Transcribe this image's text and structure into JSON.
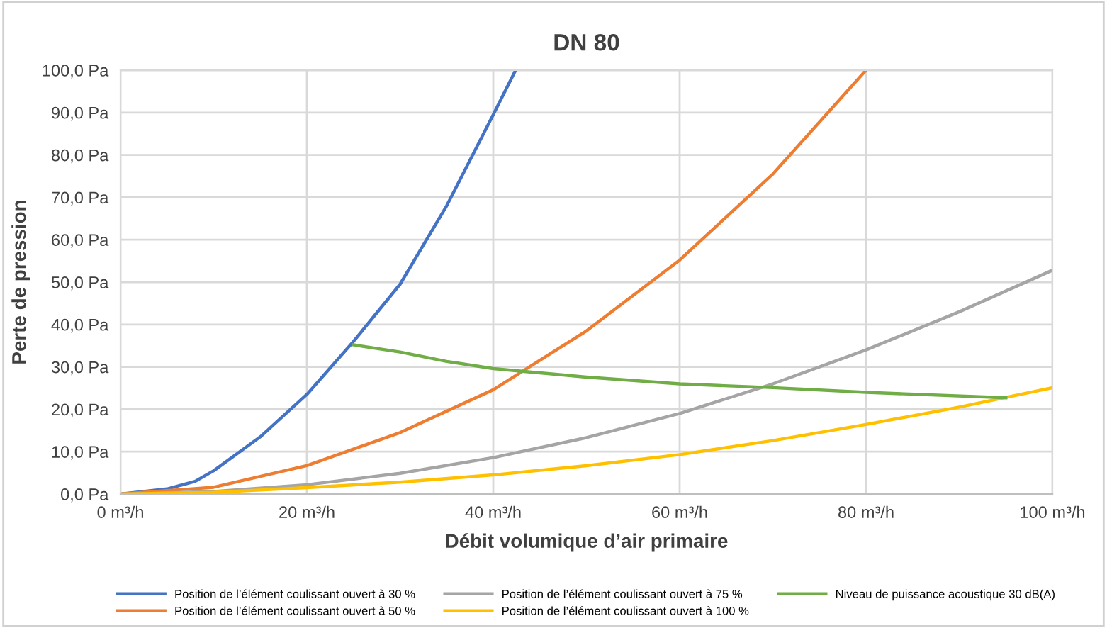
{
  "chart_data": {
    "type": "line",
    "title": "DN 80",
    "xlabel": "Débit volumique d’air primaire",
    "ylabel": "Perte de pression",
    "xlim": [
      0,
      100
    ],
    "ylim": [
      0,
      100
    ],
    "xticks": [
      {
        "value": 0,
        "label": "0 m³/h"
      },
      {
        "value": 20,
        "label": "20 m³/h"
      },
      {
        "value": 40,
        "label": "40 m³/h"
      },
      {
        "value": 60,
        "label": "60 m³/h"
      },
      {
        "value": 80,
        "label": "80 m³/h"
      },
      {
        "value": 100,
        "label": "100 m³/h"
      }
    ],
    "yticks": [
      {
        "value": 0,
        "label": "0,0 Pa"
      },
      {
        "value": 10,
        "label": "10,0 Pa"
      },
      {
        "value": 20,
        "label": "20,0 Pa"
      },
      {
        "value": 30,
        "label": "30,0 Pa"
      },
      {
        "value": 40,
        "label": "40,0 Pa"
      },
      {
        "value": 50,
        "label": "50,0 Pa"
      },
      {
        "value": 60,
        "label": "60,0 Pa"
      },
      {
        "value": 70,
        "label": "70,0 Pa"
      },
      {
        "value": 80,
        "label": "80,0 Pa"
      },
      {
        "value": 90,
        "label": "90,0 Pa"
      },
      {
        "value": 100,
        "label": "100,0 Pa"
      }
    ],
    "grid": true,
    "legend": "bottom",
    "marker": "none",
    "line_style": "solid",
    "series": [
      {
        "name": "Position de l’élément coulissant ouvert à 30 %",
        "color": "#4472c4",
        "x": [
          0,
          5,
          8,
          10,
          15,
          20,
          25,
          30,
          35,
          40,
          42.4
        ],
        "values": [
          0,
          1.2,
          3,
          5.5,
          13.5,
          23.5,
          36,
          49.5,
          68,
          89.5,
          100
        ]
      },
      {
        "name": "Position de l’élément coulissant ouvert à 50 %",
        "color": "#ed7d31",
        "x": [
          0,
          10,
          20,
          30,
          40,
          50,
          60,
          70,
          80
        ],
        "values": [
          0,
          1.6,
          6.7,
          14.5,
          24.6,
          38.5,
          55.2,
          75.5,
          100
        ]
      },
      {
        "name": "Position de l’élément coulissant ouvert à 75 %",
        "color": "#a5a5a5",
        "x": [
          0,
          10,
          20,
          30,
          40,
          50,
          60,
          70,
          80,
          90,
          100
        ],
        "values": [
          0,
          0.6,
          2.2,
          4.9,
          8.6,
          13.3,
          19,
          26,
          34,
          43,
          52.8
        ]
      },
      {
        "name": "Position de l’élément coulissant ouvert à 100 %",
        "color": "#ffc000",
        "x": [
          0,
          10,
          20,
          30,
          40,
          50,
          60,
          70,
          80,
          90,
          100
        ],
        "values": [
          0,
          0.4,
          1.5,
          2.8,
          4.5,
          6.7,
          9.3,
          12.6,
          16.4,
          20.5,
          25.1
        ]
      },
      {
        "name": "Niveau de puissance acoustique 30 dB(A)",
        "color": "#70ad47",
        "x": [
          25,
          30,
          35,
          40,
          50,
          60,
          70,
          80,
          95
        ],
        "values": [
          35.2,
          33.5,
          31.3,
          29.6,
          27.6,
          26,
          25.1,
          24,
          22.7
        ]
      }
    ]
  }
}
